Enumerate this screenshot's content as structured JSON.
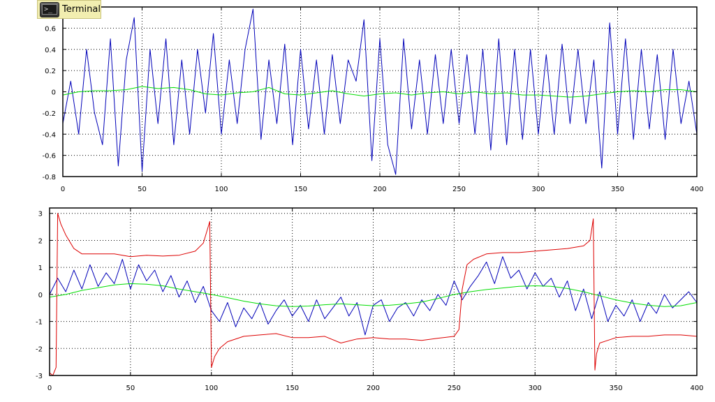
{
  "window": {
    "terminal_label": "Terminal",
    "terminal_icon": "terminal-icon"
  },
  "colors": {
    "noisy": "#0000b8",
    "smooth": "#00dd00",
    "envelope": "#dd0000",
    "grid": "#000000"
  },
  "chart_data": [
    {
      "type": "line",
      "title": "",
      "xlabel": "",
      "ylabel": "",
      "xlim": [
        0,
        400
      ],
      "ylim": [
        -0.8,
        0.8
      ],
      "xticks": [
        0,
        50,
        100,
        150,
        200,
        250,
        300,
        350,
        400
      ],
      "yticks": [
        -0.8,
        -0.6,
        -0.4,
        -0.2,
        0,
        0.2,
        0.4,
        0.6
      ],
      "ytick_labels": [
        "-0.8",
        "-0.6",
        "-0.4",
        "-0.2",
        "0",
        "0.2",
        "0.4",
        "0.6"
      ],
      "grid": true,
      "series": [
        {
          "color": "#0000b8",
          "x": [
            0,
            5,
            10,
            15,
            20,
            25,
            30,
            35,
            40,
            45,
            50,
            55,
            60,
            65,
            70,
            75,
            80,
            85,
            90,
            95,
            100,
            105,
            110,
            115,
            120,
            125,
            130,
            135,
            140,
            145,
            150,
            155,
            160,
            165,
            170,
            175,
            180,
            185,
            190,
            195,
            200,
            205,
            210,
            215,
            220,
            225,
            230,
            235,
            240,
            245,
            250,
            255,
            260,
            265,
            270,
            275,
            280,
            285,
            290,
            295,
            300,
            305,
            310,
            315,
            320,
            325,
            330,
            335,
            340,
            345,
            350,
            355,
            360,
            365,
            370,
            375,
            380,
            385,
            390,
            395,
            400
          ],
          "y": [
            -0.3,
            0.1,
            -0.4,
            0.4,
            -0.2,
            -0.5,
            0.5,
            -0.7,
            0.3,
            0.7,
            -0.75,
            0.4,
            -0.3,
            0.5,
            -0.5,
            0.3,
            -0.4,
            0.4,
            -0.2,
            0.55,
            -0.4,
            0.3,
            -0.3,
            0.4,
            0.78,
            -0.45,
            0.3,
            -0.3,
            0.45,
            -0.5,
            0.4,
            -0.35,
            0.3,
            -0.4,
            0.35,
            -0.3,
            0.3,
            0.1,
            0.68,
            -0.65,
            0.5,
            -0.5,
            -0.78,
            0.5,
            -0.35,
            0.3,
            -0.4,
            0.35,
            -0.3,
            0.4,
            -0.3,
            0.35,
            -0.4,
            0.4,
            -0.55,
            0.5,
            -0.5,
            0.4,
            -0.45,
            0.4,
            -0.4,
            0.35,
            -0.4,
            0.45,
            -0.3,
            0.4,
            -0.3,
            0.3,
            -0.72,
            0.65,
            -0.4,
            0.5,
            -0.45,
            0.4,
            -0.35,
            0.35,
            -0.45,
            0.4,
            -0.3,
            0.1,
            -0.4
          ]
        },
        {
          "color": "#00dd00",
          "x": [
            0,
            10,
            20,
            30,
            40,
            50,
            60,
            70,
            80,
            90,
            100,
            110,
            120,
            130,
            140,
            150,
            160,
            170,
            180,
            190,
            200,
            210,
            220,
            230,
            240,
            250,
            260,
            270,
            280,
            290,
            300,
            310,
            320,
            330,
            340,
            350,
            360,
            370,
            380,
            390,
            400
          ],
          "y": [
            -0.03,
            0.0,
            0.01,
            0.01,
            0.02,
            0.05,
            0.03,
            0.04,
            0.02,
            -0.02,
            -0.03,
            -0.01,
            0.0,
            0.04,
            -0.02,
            -0.03,
            -0.01,
            0.01,
            -0.02,
            -0.04,
            -0.02,
            -0.01,
            -0.03,
            -0.01,
            0.0,
            -0.02,
            0.0,
            -0.02,
            -0.01,
            -0.03,
            -0.03,
            -0.04,
            -0.05,
            -0.04,
            -0.02,
            0.0,
            0.01,
            0.0,
            0.02,
            0.02,
            0.0
          ]
        }
      ]
    },
    {
      "type": "line",
      "title": "",
      "xlabel": "",
      "ylabel": "",
      "xlim": [
        0,
        400
      ],
      "ylim": [
        -3,
        3.2
      ],
      "xticks": [
        0,
        50,
        100,
        150,
        200,
        250,
        300,
        350,
        400
      ],
      "yticks": [
        -3,
        -2,
        -1,
        0,
        1,
        2,
        3
      ],
      "ytick_labels": [
        "-3",
        "-2",
        "-1",
        "0",
        "1",
        "2",
        "3"
      ],
      "grid": true,
      "series": [
        {
          "color": "#0000b8",
          "x": [
            0,
            5,
            10,
            15,
            20,
            25,
            30,
            35,
            40,
            45,
            50,
            55,
            60,
            65,
            70,
            75,
            80,
            85,
            90,
            95,
            100,
            105,
            110,
            115,
            120,
            125,
            130,
            135,
            140,
            145,
            150,
            155,
            160,
            165,
            170,
            175,
            180,
            185,
            190,
            195,
            200,
            205,
            210,
            215,
            220,
            225,
            230,
            235,
            240,
            245,
            250,
            255,
            260,
            265,
            270,
            275,
            280,
            285,
            290,
            295,
            300,
            305,
            310,
            315,
            320,
            325,
            330,
            335,
            340,
            345,
            350,
            355,
            360,
            365,
            370,
            375,
            380,
            385,
            390,
            395,
            400
          ],
          "y": [
            0.0,
            0.6,
            0.1,
            0.9,
            0.2,
            1.1,
            0.3,
            0.8,
            0.4,
            1.3,
            0.2,
            1.1,
            0.5,
            0.9,
            0.1,
            0.7,
            -0.1,
            0.5,
            -0.3,
            0.3,
            -0.6,
            -1.0,
            -0.3,
            -1.2,
            -0.5,
            -0.9,
            -0.3,
            -1.1,
            -0.6,
            -0.2,
            -0.8,
            -0.4,
            -1.0,
            -0.2,
            -0.9,
            -0.5,
            -0.1,
            -0.8,
            -0.3,
            -1.5,
            -0.4,
            -0.2,
            -1.0,
            -0.5,
            -0.3,
            -0.8,
            -0.2,
            -0.6,
            0.0,
            -0.4,
            0.5,
            -0.2,
            0.3,
            0.7,
            1.2,
            0.4,
            1.4,
            0.6,
            0.9,
            0.2,
            0.8,
            0.3,
            0.6,
            -0.1,
            0.5,
            -0.6,
            0.2,
            -0.9,
            0.1,
            -1.0,
            -0.4,
            -0.8,
            -0.2,
            -1.0,
            -0.3,
            -0.7,
            0.0,
            -0.5,
            -0.2,
            0.1,
            -0.3
          ]
        },
        {
          "color": "#00dd00",
          "x": [
            0,
            10,
            20,
            30,
            40,
            50,
            60,
            70,
            80,
            90,
            100,
            110,
            120,
            130,
            140,
            150,
            160,
            170,
            180,
            190,
            200,
            210,
            220,
            230,
            240,
            250,
            260,
            270,
            280,
            290,
            300,
            310,
            320,
            330,
            340,
            350,
            360,
            370,
            380,
            390,
            400
          ],
          "y": [
            -0.1,
            0.0,
            0.15,
            0.25,
            0.35,
            0.4,
            0.38,
            0.32,
            0.2,
            0.1,
            0.0,
            -0.12,
            -0.25,
            -0.35,
            -0.42,
            -0.45,
            -0.43,
            -0.38,
            -0.35,
            -0.38,
            -0.42,
            -0.4,
            -0.35,
            -0.28,
            -0.15,
            0.0,
            0.1,
            0.18,
            0.24,
            0.3,
            0.32,
            0.3,
            0.22,
            0.1,
            -0.05,
            -0.2,
            -0.32,
            -0.4,
            -0.45,
            -0.42,
            -0.3
          ]
        },
        {
          "color": "#dd0000",
          "x": [
            0,
            2,
            4,
            5,
            7,
            10,
            15,
            20,
            30,
            40,
            50,
            60,
            70,
            80,
            90,
            95,
            98,
            99,
            100,
            102,
            105,
            110,
            120,
            130,
            140,
            150,
            160,
            170,
            180,
            190,
            200,
            210,
            220,
            230,
            240,
            250,
            253,
            255,
            258,
            262,
            270,
            280,
            290,
            300,
            310,
            320,
            330,
            334,
            336,
            337,
            338,
            340,
            345,
            350,
            360,
            370,
            380,
            390,
            400
          ],
          "y": [
            -2.9,
            -3.0,
            -2.7,
            3.0,
            2.6,
            2.2,
            1.7,
            1.5,
            1.5,
            1.5,
            1.4,
            1.45,
            1.42,
            1.45,
            1.6,
            1.9,
            2.5,
            2.7,
            -2.7,
            -2.3,
            -2.0,
            -1.75,
            -1.55,
            -1.5,
            -1.45,
            -1.6,
            -1.6,
            -1.55,
            -1.8,
            -1.65,
            -1.6,
            -1.65,
            -1.65,
            -1.7,
            -1.62,
            -1.55,
            -1.3,
            0.2,
            1.1,
            1.3,
            1.5,
            1.55,
            1.55,
            1.6,
            1.65,
            1.7,
            1.8,
            2.0,
            2.8,
            -2.8,
            -2.2,
            -1.8,
            -1.7,
            -1.6,
            -1.55,
            -1.55,
            -1.5,
            -1.5,
            -1.55
          ]
        }
      ]
    }
  ]
}
